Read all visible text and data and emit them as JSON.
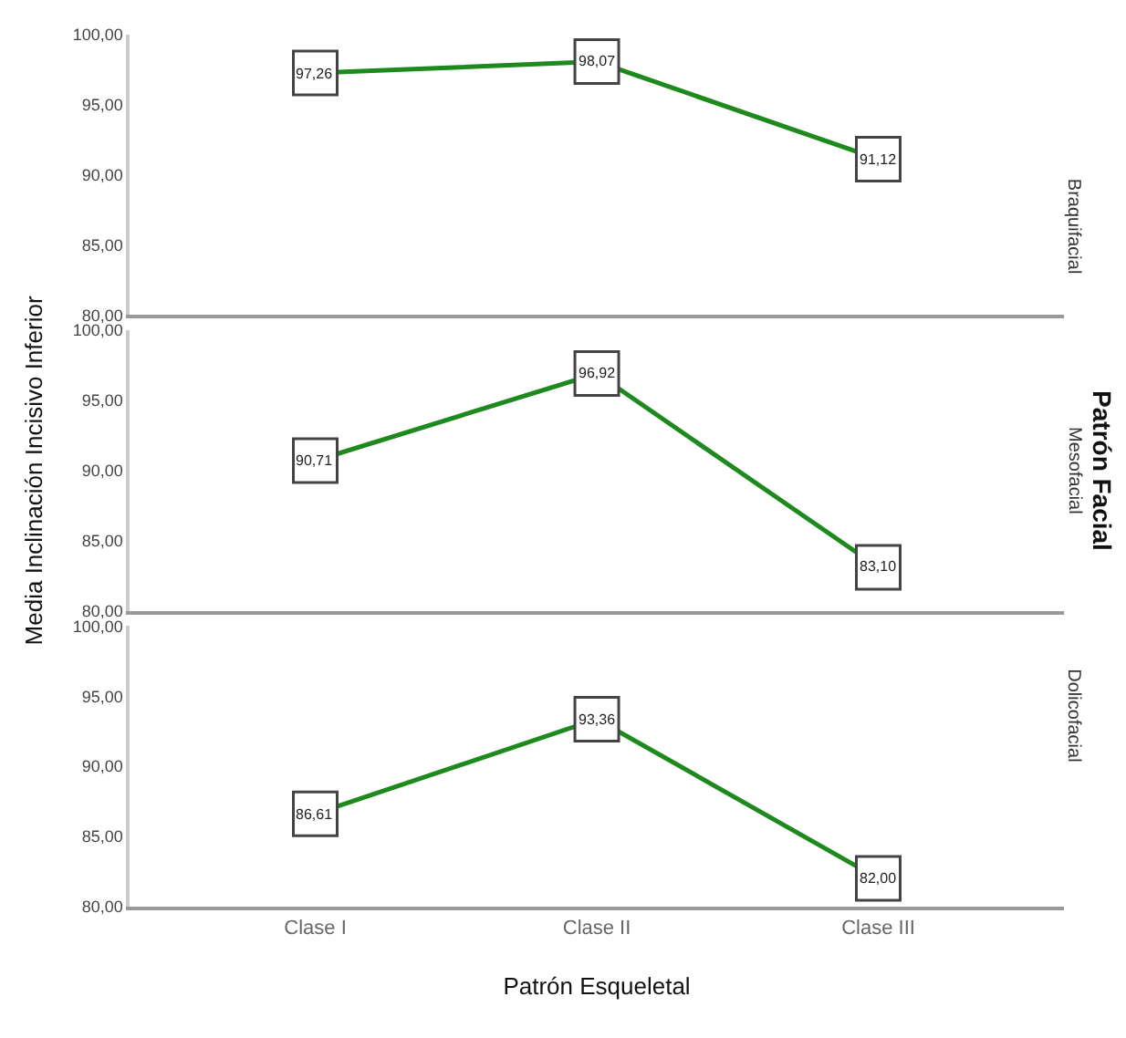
{
  "chart_data": [
    {
      "type": "line",
      "title": "Braquifacial",
      "categories": [
        null,
        null,
        null
      ],
      "series": [
        {
          "color": "#1e8a1e",
          "values": [
            97.26,
            98.07,
            91.12
          ],
          "value_labels": [
            "97,26",
            "98,07",
            "91,12"
          ]
        }
      ],
      "ylim": [
        80,
        100
      ],
      "yticks": [
        {
          "value": 80,
          "label": "80,00"
        },
        {
          "value": 85,
          "label": "85,00"
        },
        {
          "value": 90,
          "label": "90,00"
        },
        {
          "value": 95,
          "label": "95,00"
        },
        {
          "value": 100,
          "label": "100,00"
        }
      ],
      "tick_labels": "y",
      "marker": "square"
    },
    {
      "type": "line",
      "title": "Mesofacial",
      "ylabel": "Media Inclinación Incisivo Inferior",
      "y2label": "Patrón Facial",
      "categories": [
        null,
        null,
        null
      ],
      "series": [
        {
          "color": "#1e8a1e",
          "values": [
            90.71,
            96.92,
            83.1
          ],
          "value_labels": [
            "90,71",
            "96,92",
            "83,10"
          ]
        }
      ],
      "ylim": [
        80,
        100
      ],
      "yticks": [
        {
          "value": 80,
          "label": "80,00"
        },
        {
          "value": 85,
          "label": "85,00"
        },
        {
          "value": 90,
          "label": "90,00"
        },
        {
          "value": 95,
          "label": "95,00"
        },
        {
          "value": 100,
          "label": "100,00"
        }
      ],
      "tick_labels": "y",
      "marker": "square"
    },
    {
      "type": "line",
      "title": "Dolicofacial",
      "xlabel": "Patrón Esqueletal",
      "categories": [
        "Clase I",
        "Clase II",
        "Clase III"
      ],
      "series": [
        {
          "color": "#1e8a1e",
          "values": [
            86.61,
            93.36,
            82.0
          ],
          "value_labels": [
            "86,61",
            "93,36",
            "82,00"
          ]
        }
      ],
      "ylim": [
        80,
        100
      ],
      "yticks": [
        {
          "value": 80,
          "label": "80,00"
        },
        {
          "value": 85,
          "label": "85,00"
        },
        {
          "value": 90,
          "label": "90,00"
        },
        {
          "value": 95,
          "label": "95,00"
        },
        {
          "value": 100,
          "label": "100,00"
        }
      ],
      "marker": "square"
    }
  ]
}
